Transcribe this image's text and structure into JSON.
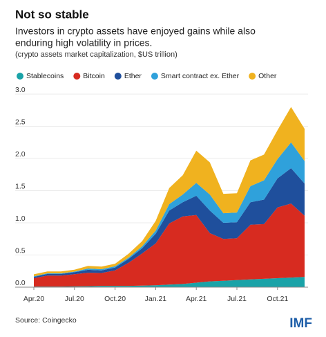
{
  "chart_data": {
    "type": "stacked-area",
    "title": "Not so stable",
    "subtitle": [
      "Investors in crypto assets have enjoyed gains while also",
      "enduring high volatility in prices."
    ],
    "note": "(crypto assets market capitalization, $US trillion)",
    "source": "Source: Coingecko",
    "logo": "IMF",
    "categories": [
      "Apr.20",
      null,
      null,
      "Jul.20",
      null,
      null,
      "Oct.20",
      null,
      null,
      "Jan.21",
      null,
      null,
      "Apr.21",
      null,
      null,
      "Jul.21",
      null,
      null,
      "Oct.21",
      null,
      null
    ],
    "ylim": [
      0,
      3
    ],
    "yticks": [
      {
        "value": 0,
        "label": "0.0"
      },
      0.5,
      {
        "value": 1,
        "label": "1.0"
      },
      1.5,
      {
        "value": 2,
        "label": "2.0"
      },
      2.5,
      {
        "value": 3,
        "label": "3.0"
      }
    ],
    "grid": true,
    "series": [
      {
        "name": "Stablecoins",
        "color": "#1aa3a8",
        "values": [
          0.01,
          0.01,
          0.01,
          0.012,
          0.015,
          0.02,
          0.02,
          0.02,
          0.025,
          0.03,
          0.04,
          0.05,
          0.07,
          0.09,
          0.1,
          0.11,
          0.12,
          0.13,
          0.14,
          0.15,
          0.16
        ]
      },
      {
        "name": "Bitcoin",
        "color": "#d72b20",
        "values": [
          0.13,
          0.17,
          0.17,
          0.19,
          0.21,
          0.2,
          0.24,
          0.36,
          0.5,
          0.65,
          0.95,
          1.05,
          1.05,
          0.75,
          0.65,
          0.65,
          0.85,
          0.85,
          1.1,
          1.15,
          0.95
        ]
      },
      {
        "name": "Ether",
        "color": "#1f4f9c",
        "values": [
          0.02,
          0.025,
          0.025,
          0.03,
          0.045,
          0.04,
          0.045,
          0.06,
          0.08,
          0.15,
          0.2,
          0.22,
          0.3,
          0.35,
          0.25,
          0.25,
          0.35,
          0.38,
          0.45,
          0.55,
          0.5
        ]
      },
      {
        "name": "Smart contract ex. Ether",
        "color": "#2fa1db",
        "values": [
          0.01,
          0.01,
          0.01,
          0.01,
          0.02,
          0.02,
          0.02,
          0.02,
          0.03,
          0.05,
          0.1,
          0.12,
          0.2,
          0.25,
          0.15,
          0.15,
          0.25,
          0.3,
          0.3,
          0.4,
          0.35
        ]
      },
      {
        "name": "Other",
        "color": "#f0b21f",
        "values": [
          0.03,
          0.03,
          0.03,
          0.03,
          0.04,
          0.04,
          0.04,
          0.06,
          0.08,
          0.15,
          0.25,
          0.3,
          0.5,
          0.5,
          0.3,
          0.3,
          0.4,
          0.4,
          0.45,
          0.55,
          0.5
        ]
      }
    ]
  }
}
